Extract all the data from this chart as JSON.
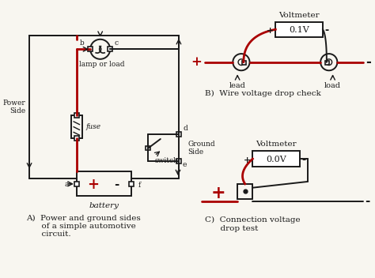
{
  "bg_color": "#ffffff",
  "paper_color": "#f8f6f0",
  "line_color": "#1a1a1a",
  "red_color": "#aa0000",
  "title_a": "A)  Power and ground sides\n      of a simple automotive\n      circuit.",
  "title_b": "B)  Wire voltage drop check",
  "title_c": "C)  Connection voltage\n      drop test",
  "voltmeter_b": "0.1V",
  "voltmeter_c": "0.0V",
  "label_voltmeter": "Voltmeter",
  "label_battery": "battery",
  "label_lamp": "lamp or load",
  "label_fuse": "fuse",
  "label_switch": "switch",
  "label_power": "Power\nSide",
  "label_ground": "Ground\nSide",
  "label_lead1": "lead",
  "label_load2": "load"
}
